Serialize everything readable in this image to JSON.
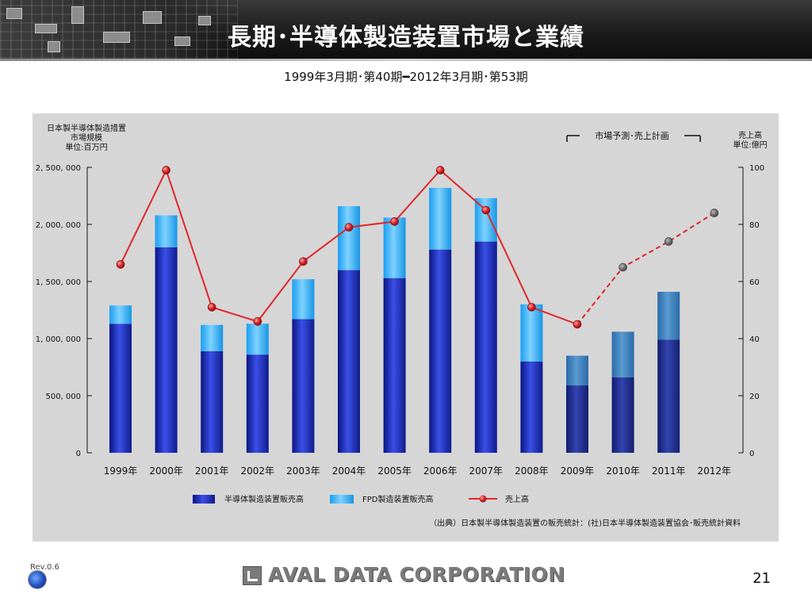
{
  "slide": {
    "title": "長期･半導体製造装置市場と業績",
    "subtitle": "1999年3月期･第40期━2012年3月期･第53期",
    "revision": "Rev.0.6",
    "brand": "AVAL DATA CORPORATION",
    "page_number": "21"
  },
  "chart_data": {
    "type": "bar",
    "left_axis_label": [
      "日本製半導体製造措置",
      "市場規模",
      "単位:百万円"
    ],
    "right_axis_label": [
      "売上高",
      "単位:億円"
    ],
    "forecast_label": "市場予測･売上計画",
    "source_note": "（出典）日本製半導体製造装置の販売統計：(社)日本半導体製造装置協会･販売統計資料",
    "categories": [
      "1999年",
      "2000年",
      "2001年",
      "2002年",
      "2003年",
      "2004年",
      "2005年",
      "2006年",
      "2007年",
      "2008年",
      "2009年",
      "2010年",
      "2011年",
      "2012年"
    ],
    "left_ticks": [
      "0",
      "500, 000",
      "1, 000, 000",
      "1, 500, 000",
      "2, 000, 000",
      "2, 500, 000"
    ],
    "right_ticks": [
      "0",
      "20",
      "40",
      "60",
      "80",
      "100"
    ],
    "ylim_left": [
      0,
      2500000
    ],
    "ylim_right": [
      0,
      100
    ],
    "series": [
      {
        "name": "半導体製造装置販売高",
        "type": "bar-stacked",
        "color": "#1f2fae",
        "values": [
          1130000,
          1800000,
          890000,
          860000,
          1170000,
          1600000,
          1530000,
          1780000,
          1850000,
          800000,
          590000,
          660000,
          990000,
          null
        ]
      },
      {
        "name": "FPD製造装置販売高",
        "type": "bar-stacked",
        "color": "#2eb0ff",
        "values": [
          160000,
          280000,
          230000,
          270000,
          350000,
          560000,
          530000,
          540000,
          380000,
          500000,
          260000,
          400000,
          420000,
          null
        ]
      },
      {
        "name": "売上高",
        "type": "line",
        "color": "#e0262a",
        "values": [
          66,
          99,
          51,
          46,
          67,
          79,
          81,
          99,
          85,
          51,
          45,
          65,
          74,
          84
        ],
        "forecast_from_index": 10
      }
    ],
    "legend_position": "bottom",
    "grid": false
  }
}
